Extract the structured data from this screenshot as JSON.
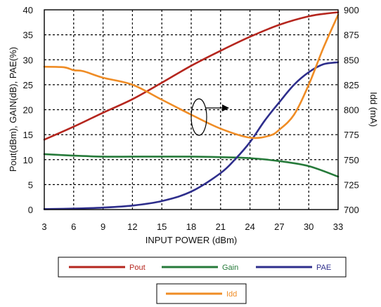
{
  "chart_data": {
    "type": "line",
    "xlabel": "INPUT POWER (dBm)",
    "ylabel": "Pout(dBm), GAIN(dB), PAE(%)",
    "y2label": "Idd (mA)",
    "xlim": [
      3,
      33
    ],
    "ylim": [
      0,
      40
    ],
    "y2lim": [
      700,
      900
    ],
    "x_ticks": [
      "3",
      "6",
      "9",
      "12",
      "15",
      "18",
      "21",
      "24",
      "27",
      "30",
      "33"
    ],
    "y_ticks": [
      "0",
      "5",
      "10",
      "15",
      "20",
      "25",
      "30",
      "35",
      "40"
    ],
    "y2_ticks": [
      "700",
      "725",
      "750",
      "775",
      "800",
      "825",
      "850",
      "875",
      "900"
    ],
    "grid": true,
    "grid_style": "dashed",
    "colors": {
      "pout": "#b5261e",
      "gain": "#267a3a",
      "pae": "#2e2e8c",
      "idd": "#ef8c25"
    },
    "series": [
      {
        "name": "Pout",
        "axis": "left",
        "x": [
          3,
          6,
          9,
          12,
          15,
          18,
          21,
          24,
          27,
          30,
          32,
          33
        ],
        "y": [
          14,
          16.6,
          19.4,
          22.1,
          25.4,
          28.8,
          31.8,
          34.6,
          37,
          38.7,
          39.3,
          39.5
        ]
      },
      {
        "name": "Gain",
        "axis": "left",
        "x": [
          3,
          6,
          9,
          12,
          15,
          18,
          21,
          24,
          27,
          30,
          33
        ],
        "y": [
          11.1,
          10.8,
          10.6,
          10.6,
          10.6,
          10.6,
          10.5,
          10.3,
          9.7,
          8.7,
          6.6
        ]
      },
      {
        "name": "PAE",
        "axis": "left",
        "x": [
          3,
          6,
          9,
          12,
          15,
          18,
          21,
          22.5,
          24,
          25.5,
          27,
          28.5,
          30,
          31.5,
          33
        ],
        "y": [
          0.1,
          0.2,
          0.4,
          0.8,
          1.7,
          3.6,
          7.3,
          10.1,
          13.5,
          17.8,
          21.5,
          25,
          27.5,
          29.1,
          29.5
        ]
      },
      {
        "name": "Idd",
        "axis": "right",
        "x": [
          3,
          5,
          6,
          7,
          9,
          12,
          15,
          18,
          21,
          24,
          26,
          27,
          28.5,
          30,
          31.5,
          33
        ],
        "y": [
          843,
          842.5,
          839.5,
          838.5,
          832,
          825,
          810,
          795,
          781,
          772,
          774,
          780,
          795,
          825,
          862,
          895
        ]
      }
    ],
    "legend": {
      "placement": "bottom",
      "entries": [
        "Pout",
        "Gain",
        "PAE",
        "Idd"
      ]
    }
  }
}
